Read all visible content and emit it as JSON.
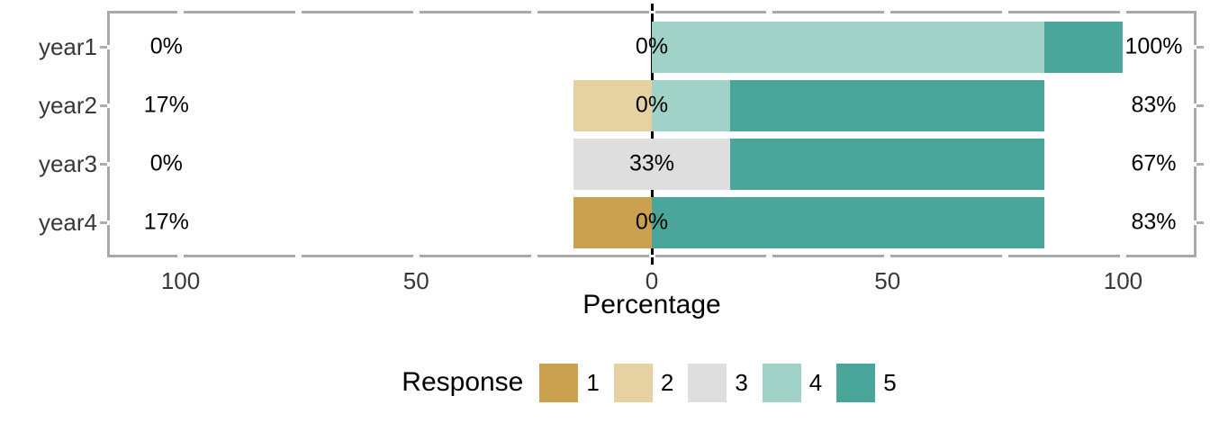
{
  "chart_data": {
    "type": "bar",
    "variant": "diverging-stacked-likert",
    "xlabel": "Percentage",
    "legend_title": "Response",
    "legend_position": "bottom",
    "grid": false,
    "zero_line": true,
    "categories": [
      "year1",
      "year2",
      "year3",
      "year4"
    ],
    "levels": [
      {
        "name": "1",
        "color": "#CBA04F"
      },
      {
        "name": "2",
        "color": "#E5D1A1"
      },
      {
        "name": "3",
        "color": "#DEDEDE"
      },
      {
        "name": "4",
        "color": "#A0D2C8"
      },
      {
        "name": "5",
        "color": "#4AA59B"
      }
    ],
    "series": [
      {
        "name": "1",
        "values": [
          0,
          0,
          0,
          17
        ]
      },
      {
        "name": "2",
        "values": [
          0,
          17,
          0,
          0
        ]
      },
      {
        "name": "3",
        "values": [
          0,
          0,
          33,
          0
        ]
      },
      {
        "name": "4",
        "values": [
          83,
          17,
          0,
          0
        ]
      },
      {
        "name": "5",
        "values": [
          17,
          66,
          67,
          83
        ]
      }
    ],
    "rows": [
      {
        "category": "year1",
        "low_label": "0%",
        "mid_label": "0%",
        "high_label": "100%",
        "segments": [
          {
            "level": "4",
            "start": 0,
            "end": 83.3
          },
          {
            "level": "5",
            "start": 83.3,
            "end": 100
          }
        ]
      },
      {
        "category": "year2",
        "low_label": "17%",
        "mid_label": "0%",
        "high_label": "83%",
        "segments": [
          {
            "level": "2",
            "start": -16.7,
            "end": 0
          },
          {
            "level": "4",
            "start": 0,
            "end": 16.7
          },
          {
            "level": "5",
            "start": 16.7,
            "end": 83.3
          }
        ]
      },
      {
        "category": "year3",
        "low_label": "0%",
        "mid_label": "33%",
        "high_label": "67%",
        "segments": [
          {
            "level": "3",
            "start": -16.7,
            "end": 16.7
          },
          {
            "level": "5",
            "start": 16.7,
            "end": 83.3
          }
        ]
      },
      {
        "category": "year4",
        "low_label": "17%",
        "mid_label": "0%",
        "high_label": "83%",
        "segments": [
          {
            "level": "1",
            "start": -16.7,
            "end": 0
          },
          {
            "level": "5",
            "start": 0,
            "end": 83.3
          }
        ]
      }
    ],
    "x_axis": {
      "xlim": [
        -115,
        115
      ],
      "ticks": [
        -100,
        -50,
        0,
        50,
        100
      ],
      "tick_labels": [
        "100",
        "50",
        "0",
        "50",
        "100"
      ],
      "minor_step": 25
    },
    "colors": {
      "panel_border": "#A9A9A9",
      "axis_text": "#383838",
      "label_text": "#000000",
      "zero_line": "#000000",
      "background": "#FFFFFF"
    }
  }
}
